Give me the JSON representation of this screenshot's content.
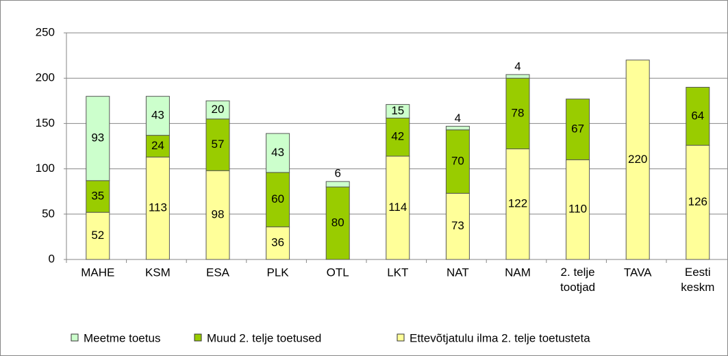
{
  "chart_data": {
    "type": "stacked_bar",
    "categories": [
      "MAHE",
      "KSM",
      "ESA",
      "PLK",
      "OTL",
      "LKT",
      "NAT",
      "NAM",
      "2. telje tootjad",
      "TAVA",
      "Eesti keskm"
    ],
    "series": [
      {
        "name": "Ettevõtjatulu ilma 2. telje toetusteta",
        "color": "#ffff99",
        "values": [
          52,
          113,
          98,
          36,
          null,
          114,
          73,
          122,
          110,
          220,
          126
        ]
      },
      {
        "name": "Muud 2. telje toetused",
        "color": "#99cc00",
        "values": [
          35,
          24,
          57,
          60,
          80,
          42,
          70,
          78,
          67,
          null,
          64
        ]
      },
      {
        "name": "Meetme toetus",
        "color": "#ccffcc",
        "values": [
          93,
          43,
          20,
          43,
          6,
          15,
          4,
          4,
          null,
          null,
          null
        ]
      }
    ],
    "ylim": [
      0,
      250
    ],
    "yticks": [
      0,
      50,
      100,
      150,
      200,
      250
    ],
    "grid": true,
    "legend": "bottom"
  }
}
